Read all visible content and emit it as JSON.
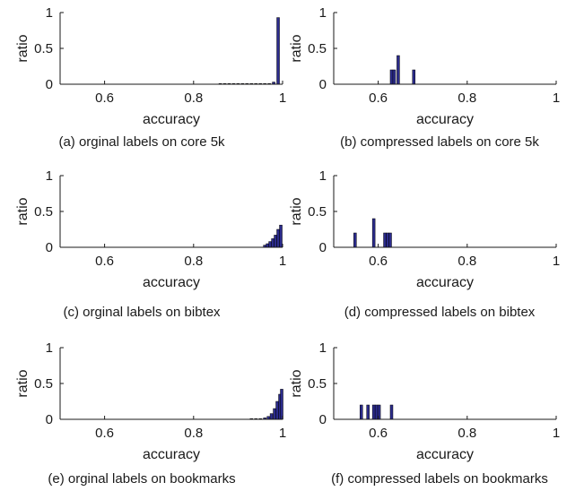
{
  "chart_data": [
    {
      "type": "bar",
      "caption": "(a) orginal labels on core 5k",
      "xlabel": "accuracy",
      "ylabel": "ratio",
      "xlim": [
        0.5,
        1
      ],
      "ylim": [
        0,
        1
      ],
      "xticks": [
        "0.6",
        "0.8",
        "1"
      ],
      "yticks": [
        "0",
        "0.5",
        "1"
      ],
      "grid": false,
      "bars": [
        {
          "x": 0.86,
          "y": 0.004
        },
        {
          "x": 0.87,
          "y": 0.004
        },
        {
          "x": 0.88,
          "y": 0.004
        },
        {
          "x": 0.89,
          "y": 0.004
        },
        {
          "x": 0.9,
          "y": 0.004
        },
        {
          "x": 0.91,
          "y": 0.004
        },
        {
          "x": 0.92,
          "y": 0.004
        },
        {
          "x": 0.93,
          "y": 0.004
        },
        {
          "x": 0.94,
          "y": 0.004
        },
        {
          "x": 0.95,
          "y": 0.006
        },
        {
          "x": 0.96,
          "y": 0.006
        },
        {
          "x": 0.97,
          "y": 0.008
        },
        {
          "x": 0.98,
          "y": 0.03
        },
        {
          "x": 0.99,
          "y": 0.93
        }
      ]
    },
    {
      "type": "bar",
      "caption": "(b) compressed labels on core 5k",
      "xlabel": "accuracy",
      "ylabel": "ratio",
      "xlim": [
        0.5,
        1
      ],
      "ylim": [
        0,
        1
      ],
      "xticks": [
        "0.6",
        "0.8",
        "1"
      ],
      "yticks": [
        "0",
        "0.5",
        "1"
      ],
      "grid": false,
      "bars": [
        {
          "x": 0.63,
          "y": 0.2
        },
        {
          "x": 0.636,
          "y": 0.2
        },
        {
          "x": 0.645,
          "y": 0.4
        },
        {
          "x": 0.68,
          "y": 0.2
        }
      ]
    },
    {
      "type": "bar",
      "caption": "(c) orginal labels on bibtex",
      "xlabel": "accuracy",
      "ylabel": "ratio",
      "xlim": [
        0.5,
        1
      ],
      "ylim": [
        0,
        1
      ],
      "xticks": [
        "0.6",
        "0.8",
        "1"
      ],
      "yticks": [
        "0",
        "0.5",
        "1"
      ],
      "grid": false,
      "bars": [
        {
          "x": 0.96,
          "y": 0.03
        },
        {
          "x": 0.966,
          "y": 0.05
        },
        {
          "x": 0.972,
          "y": 0.08
        },
        {
          "x": 0.978,
          "y": 0.12
        },
        {
          "x": 0.984,
          "y": 0.17
        },
        {
          "x": 0.99,
          "y": 0.25
        },
        {
          "x": 0.996,
          "y": 0.31
        }
      ]
    },
    {
      "type": "bar",
      "caption": "(d) compressed labels on bibtex",
      "xlabel": "accuracy",
      "ylabel": "ratio",
      "xlim": [
        0.5,
        1
      ],
      "ylim": [
        0,
        1
      ],
      "xticks": [
        "0.6",
        "0.8",
        "1"
      ],
      "yticks": [
        "0",
        "0.5",
        "1"
      ],
      "grid": false,
      "bars": [
        {
          "x": 0.548,
          "y": 0.2
        },
        {
          "x": 0.59,
          "y": 0.4
        },
        {
          "x": 0.615,
          "y": 0.2
        },
        {
          "x": 0.621,
          "y": 0.2
        },
        {
          "x": 0.627,
          "y": 0.2
        }
      ]
    },
    {
      "type": "bar",
      "caption": "(e) orginal labels on bookmarks",
      "xlabel": "accuracy",
      "ylabel": "ratio",
      "xlim": [
        0.5,
        1
      ],
      "ylim": [
        0,
        1
      ],
      "xticks": [
        "0.6",
        "0.8",
        "1"
      ],
      "yticks": [
        "0",
        "0.5",
        "1"
      ],
      "grid": false,
      "bars": [
        {
          "x": 0.93,
          "y": 0.004
        },
        {
          "x": 0.94,
          "y": 0.006
        },
        {
          "x": 0.95,
          "y": 0.01
        },
        {
          "x": 0.96,
          "y": 0.02
        },
        {
          "x": 0.968,
          "y": 0.04
        },
        {
          "x": 0.975,
          "y": 0.08
        },
        {
          "x": 0.982,
          "y": 0.15
        },
        {
          "x": 0.988,
          "y": 0.25
        },
        {
          "x": 0.994,
          "y": 0.35
        },
        {
          "x": 0.998,
          "y": 0.42
        }
      ]
    },
    {
      "type": "bar",
      "caption": "(f) compressed labels on bookmarks",
      "xlabel": "accuracy",
      "ylabel": "ratio",
      "xlim": [
        0.5,
        1
      ],
      "ylim": [
        0,
        1
      ],
      "xticks": [
        "0.6",
        "0.8",
        "1"
      ],
      "yticks": [
        "0",
        "0.5",
        "1"
      ],
      "grid": false,
      "bars": [
        {
          "x": 0.562,
          "y": 0.2
        },
        {
          "x": 0.577,
          "y": 0.2
        },
        {
          "x": 0.59,
          "y": 0.2
        },
        {
          "x": 0.596,
          "y": 0.2
        },
        {
          "x": 0.602,
          "y": 0.2
        },
        {
          "x": 0.63,
          "y": 0.2
        }
      ]
    }
  ],
  "style": {
    "bar_fill": "#2b2b8c",
    "bar_stroke": "#000000",
    "axis_color": "#1a1a1a"
  }
}
